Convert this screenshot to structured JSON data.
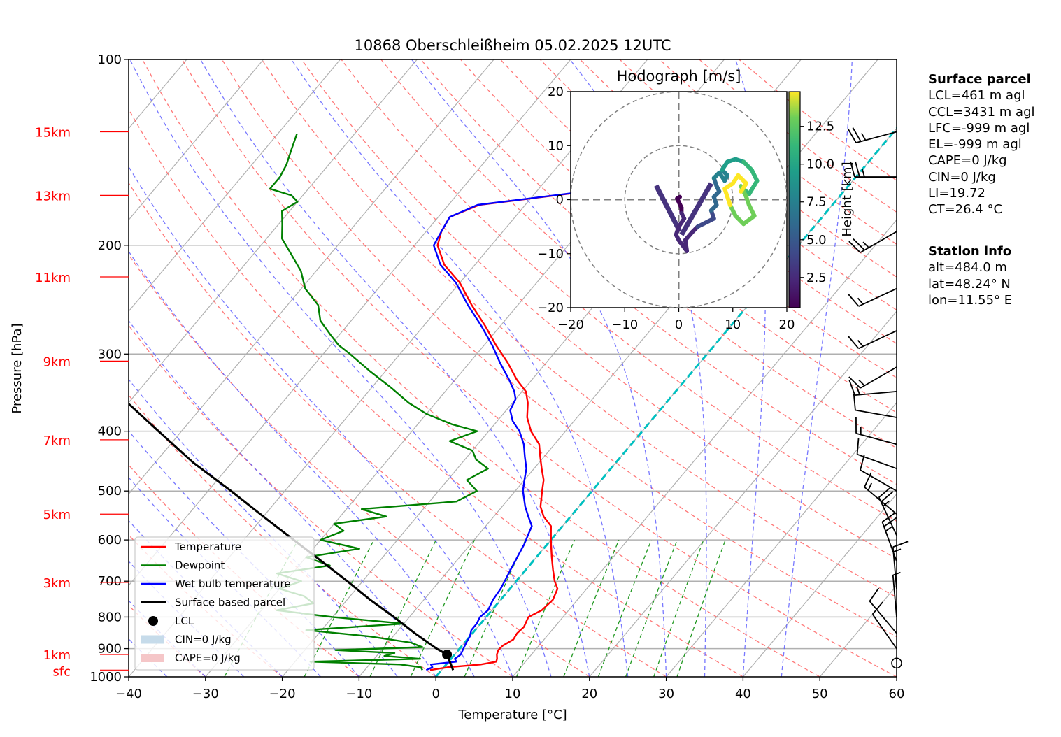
{
  "chart_data": {
    "type": "line",
    "subtype": "skew-T log-p",
    "title": "10868 Oberschleißheim 05.02.2025 12UTC",
    "xlabel": "Temperature [°C]",
    "ylabel": "Pressure [hPa]",
    "xlim": [
      -40,
      60
    ],
    "ylim": [
      1000,
      100
    ],
    "y_scale": "log",
    "x_ticks": [
      -40,
      -30,
      -20,
      -10,
      0,
      10,
      20,
      30,
      40,
      50,
      60
    ],
    "y_ticks": [
      100,
      200,
      300,
      400,
      500,
      600,
      700,
      800,
      900,
      1000
    ],
    "grid": true,
    "height_labels": [
      {
        "label": "15km",
        "p": 131
      },
      {
        "label": "13km",
        "p": 166
      },
      {
        "label": "11km",
        "p": 225
      },
      {
        "label": "9km",
        "p": 308
      },
      {
        "label": "7km",
        "p": 413
      },
      {
        "label": "5km",
        "p": 545
      },
      {
        "label": "3km",
        "p": 703
      },
      {
        "label": "1km",
        "p": 920
      },
      {
        "label": "sfc",
        "p": 975
      }
    ],
    "series": [
      {
        "name": "Temperature",
        "color": "#ff0000",
        "points": [
          [
            975,
            -1.5
          ],
          [
            965,
            0.5
          ],
          [
            955,
            4.5
          ],
          [
            945,
            6.2
          ],
          [
            935,
            6.0
          ],
          [
            920,
            5.5
          ],
          [
            905,
            5.2
          ],
          [
            890,
            5.3
          ],
          [
            870,
            6.0
          ],
          [
            850,
            5.8
          ],
          [
            830,
            6.0
          ],
          [
            800,
            5.5
          ],
          [
            780,
            6.5
          ],
          [
            750,
            6.8
          ],
          [
            720,
            6.2
          ],
          [
            700,
            5.0
          ],
          [
            670,
            3.5
          ],
          [
            640,
            2.0
          ],
          [
            610,
            0.5
          ],
          [
            590,
            -0.5
          ],
          [
            570,
            -1.5
          ],
          [
            550,
            -3.5
          ],
          [
            530,
            -5.0
          ],
          [
            500,
            -6.5
          ],
          [
            480,
            -7.5
          ],
          [
            460,
            -9.0
          ],
          [
            440,
            -10.5
          ],
          [
            420,
            -12.0
          ],
          [
            400,
            -14.5
          ],
          [
            380,
            -16.5
          ],
          [
            360,
            -18.0
          ],
          [
            345,
            -19.5
          ],
          [
            330,
            -22.0
          ],
          [
            310,
            -25.0
          ],
          [
            290,
            -28.5
          ],
          [
            270,
            -32.0
          ],
          [
            250,
            -36.0
          ],
          [
            230,
            -40.0
          ],
          [
            215,
            -44.0
          ],
          [
            200,
            -47.0
          ],
          [
            190,
            -48.0
          ],
          [
            180,
            -48.5
          ],
          [
            172,
            -46.0
          ],
          [
            168,
            -40.0
          ],
          [
            164,
            -34.0
          ],
          [
            160,
            -30.5
          ],
          [
            155,
            -29.5
          ],
          [
            150,
            -28.5
          ],
          [
            145,
            -29.0
          ],
          [
            140,
            -29.5
          ],
          [
            135,
            -29.8
          ],
          [
            131,
            -30.0
          ]
        ]
      },
      {
        "name": "Dewpoint",
        "color": "#008000",
        "points": [
          [
            975,
            -2.5
          ],
          [
            965,
            -3.0
          ],
          [
            955,
            -6.0
          ],
          [
            945,
            -18.0
          ],
          [
            935,
            -4.0
          ],
          [
            925,
            -9.0
          ],
          [
            915,
            -8.0
          ],
          [
            905,
            -16.0
          ],
          [
            895,
            -5.0
          ],
          [
            880,
            -7.0
          ],
          [
            860,
            -13.0
          ],
          [
            840,
            -22.0
          ],
          [
            820,
            -10.0
          ],
          [
            800,
            -20.0
          ],
          [
            780,
            -28.0
          ],
          [
            760,
            -24.0
          ],
          [
            740,
            -26.0
          ],
          [
            720,
            -30.0
          ],
          [
            700,
            -28.0
          ],
          [
            680,
            -32.0
          ],
          [
            660,
            -26.0
          ],
          [
            640,
            -30.0
          ],
          [
            620,
            -24.0
          ],
          [
            600,
            -30.0
          ],
          [
            580,
            -28.0
          ],
          [
            565,
            -30.0
          ],
          [
            550,
            -24.0
          ],
          [
            535,
            -28.0
          ],
          [
            520,
            -16.5
          ],
          [
            500,
            -15.0
          ],
          [
            480,
            -17.5
          ],
          [
            460,
            -16.0
          ],
          [
            445,
            -18.5
          ],
          [
            430,
            -20.0
          ],
          [
            415,
            -24.0
          ],
          [
            400,
            -21.5
          ],
          [
            390,
            -25.5
          ],
          [
            375,
            -30.0
          ],
          [
            360,
            -33.5
          ],
          [
            340,
            -37.5
          ],
          [
            320,
            -42.0
          ],
          [
            300,
            -46.5
          ],
          [
            290,
            -49.0
          ],
          [
            280,
            -51.0
          ],
          [
            265,
            -54.0
          ],
          [
            250,
            -56.0
          ],
          [
            235,
            -59.5
          ],
          [
            220,
            -62.0
          ],
          [
            205,
            -65.5
          ],
          [
            195,
            -68.0
          ],
          [
            185,
            -69.5
          ],
          [
            176,
            -71.0
          ],
          [
            170,
            -70.0
          ],
          [
            166,
            -71.5
          ],
          [
            162,
            -75.0
          ],
          [
            155,
            -75.0
          ],
          [
            148,
            -75.5
          ],
          [
            140,
            -76.5
          ],
          [
            132,
            -77.5
          ]
        ]
      },
      {
        "name": "Wet bulb temperature",
        "color": "#0000ff",
        "points": [
          [
            975,
            -2.0
          ],
          [
            965,
            -1.5
          ],
          [
            955,
            -2.0
          ],
          [
            945,
            1.0
          ],
          [
            935,
            0.5
          ],
          [
            920,
            0.8
          ],
          [
            900,
            0.5
          ],
          [
            880,
            0.2
          ],
          [
            860,
            0.0
          ],
          [
            840,
            -0.5
          ],
          [
            820,
            -0.5
          ],
          [
            800,
            -0.8
          ],
          [
            780,
            -0.5
          ],
          [
            750,
            -1.0
          ],
          [
            720,
            -1.2
          ],
          [
            700,
            -1.5
          ],
          [
            670,
            -2.0
          ],
          [
            640,
            -2.5
          ],
          [
            610,
            -3.0
          ],
          [
            590,
            -3.5
          ],
          [
            570,
            -4.0
          ],
          [
            550,
            -5.5
          ],
          [
            530,
            -7.0
          ],
          [
            500,
            -9.0
          ],
          [
            480,
            -10.0
          ],
          [
            460,
            -11.0
          ],
          [
            440,
            -12.5
          ],
          [
            420,
            -14.0
          ],
          [
            400,
            -16.0
          ],
          [
            385,
            -18.0
          ],
          [
            370,
            -19.5
          ],
          [
            355,
            -20.0
          ],
          [
            345,
            -21.0
          ],
          [
            330,
            -23.0
          ],
          [
            310,
            -26.0
          ],
          [
            290,
            -29.0
          ],
          [
            270,
            -32.5
          ],
          [
            250,
            -36.5
          ],
          [
            230,
            -40.5
          ],
          [
            215,
            -44.5
          ],
          [
            200,
            -47.5
          ],
          [
            190,
            -48.0
          ],
          [
            180,
            -48.5
          ],
          [
            172,
            -46.2
          ],
          [
            168,
            -40.2
          ],
          [
            164,
            -34.2
          ],
          [
            160,
            -30.7
          ],
          [
            155,
            -29.7
          ],
          [
            150,
            -28.7
          ],
          [
            145,
            -29.2
          ],
          [
            140,
            -29.7
          ],
          [
            135,
            -30.0
          ],
          [
            131,
            -30.2
          ]
        ]
      },
      {
        "name": "Surface based parcel",
        "color": "#000000",
        "points": [
          [
            975,
            1.5
          ],
          [
            920,
            -1.0
          ],
          [
            900,
            -3.0
          ],
          [
            850,
            -7.5
          ],
          [
            800,
            -12.0
          ],
          [
            750,
            -17.0
          ],
          [
            700,
            -22.0
          ],
          [
            650,
            -27.5
          ],
          [
            600,
            -33.5
          ],
          [
            550,
            -40.0
          ],
          [
            500,
            -47.0
          ],
          [
            450,
            -55.0
          ],
          [
            400,
            -63.0
          ],
          [
            350,
            -72.0
          ],
          [
            300,
            -82.0
          ],
          [
            270,
            -88.0
          ]
        ]
      }
    ],
    "lcl": {
      "label": "LCL",
      "p": 920,
      "t": -1.0
    },
    "zero_isotherm": {
      "t": 0,
      "color": "#00c0c0"
    },
    "legend": {
      "placement": "lower-left",
      "entries": [
        {
          "label": "Temperature",
          "color": "#ff0000",
          "kind": "line"
        },
        {
          "label": "Dewpoint",
          "color": "#008000",
          "kind": "line"
        },
        {
          "label": "Wet bulb temperature",
          "color": "#0000ff",
          "kind": "line"
        },
        {
          "label": "Surface based parcel",
          "color": "#000000",
          "kind": "line"
        },
        {
          "label": "LCL",
          "color": "#000000",
          "kind": "marker"
        },
        {
          "label": "CIN=0 J/kg",
          "color": "#c6dbea",
          "kind": "patch"
        },
        {
          "label": "CAPE=0 J/kg",
          "color": "#f5c6c8",
          "kind": "patch"
        }
      ]
    },
    "wind_barbs": [
      {
        "p": 131,
        "dir": 255,
        "kt": 25
      },
      {
        "p": 155,
        "dir": 270,
        "kt": 25
      },
      {
        "p": 190,
        "dir": 240,
        "kt": 25
      },
      {
        "p": 235,
        "dir": 245,
        "kt": 15
      },
      {
        "p": 275,
        "dir": 245,
        "kt": 15
      },
      {
        "p": 315,
        "dir": 240,
        "kt": 15
      },
      {
        "p": 345,
        "dir": 265,
        "kt": 15
      },
      {
        "p": 380,
        "dir": 280,
        "kt": 10
      },
      {
        "p": 420,
        "dir": 285,
        "kt": 15
      },
      {
        "p": 460,
        "dir": 290,
        "kt": 10
      },
      {
        "p": 500,
        "dir": 300,
        "kt": 10
      },
      {
        "p": 545,
        "dir": 310,
        "kt": 15
      },
      {
        "p": 590,
        "dir": 335,
        "kt": 25
      },
      {
        "p": 650,
        "dir": 340,
        "kt": 25
      },
      {
        "p": 720,
        "dir": 355,
        "kt": 15
      },
      {
        "p": 800,
        "dir": 355,
        "kt": 5
      },
      {
        "p": 850,
        "dir": 320,
        "kt": 10
      },
      {
        "p": 900,
        "dir": 325,
        "kt": 10
      },
      {
        "p": 950,
        "dir": 0,
        "kt": 0
      }
    ],
    "hodograph": {
      "title": "Hodograph [m/s]",
      "xlim": [
        -20,
        20
      ],
      "ylim": [
        -20,
        20
      ],
      "x_ticks": [
        -20,
        -10,
        0,
        10,
        20
      ],
      "y_ticks": [
        -20,
        -10,
        0,
        10,
        20
      ],
      "rings": [
        10,
        20
      ],
      "colorbar": {
        "label": "Height [km]",
        "ticks": [
          2.5,
          5.0,
          7.5,
          10.0,
          12.5
        ],
        "range": [
          0.5,
          14.8
        ]
      },
      "points": [
        [
          0.2,
          0.5,
          0.5
        ],
        [
          -0.3,
          0.2,
          0.8
        ],
        [
          0.5,
          -1.5,
          1.0
        ],
        [
          0.5,
          -2.5,
          1.2
        ],
        [
          1.0,
          -3.5,
          1.4
        ],
        [
          0.0,
          -5.0,
          1.6
        ],
        [
          -0.5,
          -6.5,
          1.8
        ],
        [
          0.0,
          -7.5,
          2.0
        ],
        [
          1.5,
          -9.5,
          2.2
        ],
        [
          1.2,
          -7.5,
          2.4
        ],
        [
          2.5,
          -6.0,
          2.6
        ],
        [
          3.5,
          -5.0,
          3.0
        ],
        [
          4.5,
          -4.5,
          3.4
        ],
        [
          5.5,
          -4.0,
          3.8
        ],
        [
          6.5,
          -3.5,
          4.2
        ],
        [
          6.0,
          -2.0,
          4.6
        ],
        [
          7.0,
          -1.0,
          5.0
        ],
        [
          6.5,
          0.5,
          5.4
        ],
        [
          7.5,
          1.5,
          5.8
        ],
        [
          7.0,
          2.5,
          6.2
        ],
        [
          6.5,
          4.0,
          6.6
        ],
        [
          7.5,
          5.0,
          7.0
        ],
        [
          8.5,
          3.5,
          7.5
        ],
        [
          9.0,
          4.5,
          8.0
        ],
        [
          8.0,
          5.5,
          8.5
        ],
        [
          9.0,
          7.0,
          9.0
        ],
        [
          10.5,
          7.5,
          9.5
        ],
        [
          12.0,
          7.0,
          10.0
        ],
        [
          13.5,
          5.5,
          10.5
        ],
        [
          14.5,
          3.5,
          11.0
        ],
        [
          13.0,
          1.0,
          11.5
        ],
        [
          11.5,
          2.5,
          12.0
        ],
        [
          12.5,
          0.5,
          12.3
        ],
        [
          13.0,
          -1.0,
          12.6
        ],
        [
          14.0,
          -3.0,
          12.9
        ],
        [
          12.0,
          -4.5,
          13.2
        ],
        [
          10.5,
          -3.0,
          13.5
        ],
        [
          9.5,
          -1.0,
          13.8
        ],
        [
          8.5,
          2.0,
          14.0
        ],
        [
          10.0,
          3.0,
          14.2
        ],
        [
          11.0,
          4.5,
          14.4
        ],
        [
          12.5,
          3.0,
          14.6
        ],
        [
          11.5,
          1.5,
          14.8
        ]
      ],
      "segments": [
        [
          [
            -4.2,
            2.6
          ],
          [
            0.0,
            -5.5
          ],
          [
            -4.2,
            2.6
          ]
        ],
        [
          [
            0.5,
            -6.5
          ],
          [
            6.0,
            3.0
          ]
        ]
      ]
    }
  },
  "surface_parcel": {
    "heading": "Surface parcel",
    "lines": [
      "LCL=461 m agl",
      "CCL=3431 m agl",
      "LFC=-999 m agl",
      "EL=-999 m agl",
      "CAPE=0 J/kg",
      "CIN=0 J/kg",
      "LI=19.72",
      "CT=26.4 °C"
    ]
  },
  "station_info": {
    "heading": "Station info",
    "lines": [
      "alt=484.0 m",
      "lat=48.24° N",
      "lon=11.55° E"
    ]
  }
}
